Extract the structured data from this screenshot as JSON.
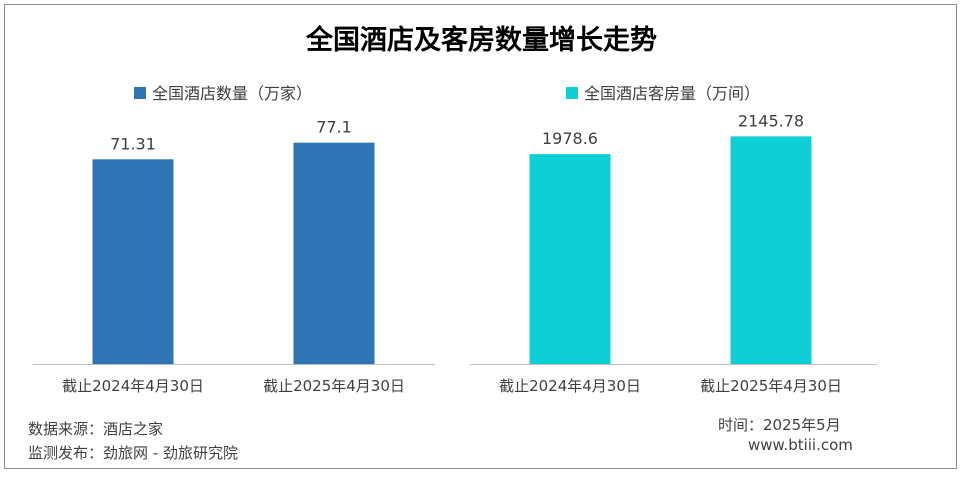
{
  "title": "全国酒店及客房数量增长走势",
  "colors": {
    "hotels": "#2e75b6",
    "rooms": "#0fcfd6",
    "axis": "#bfbfbf"
  },
  "chart_data": [
    {
      "type": "bar",
      "categories": [
        "截止2024年4月30日",
        "截止2025年4月30日"
      ],
      "series": [
        {
          "name": "全国酒店数量（万家）",
          "values": [
            71.31,
            77.1
          ]
        }
      ],
      "value_labels": [
        "71.31",
        "77.1"
      ],
      "grid": false,
      "legend": "top-left",
      "ylim": [
        0,
        85
      ]
    },
    {
      "type": "bar",
      "categories": [
        "截止2024年4月30日",
        "截止2025年4月30日"
      ],
      "series": [
        {
          "name": "全国酒店客房量（万间）",
          "values": [
            1978.6,
            2145.78
          ]
        }
      ],
      "value_labels": [
        "1978.6",
        "2145.78"
      ],
      "grid": false,
      "legend": "top-center",
      "ylim": [
        0,
        2300
      ]
    }
  ],
  "footer": {
    "source": "数据来源：酒店之家",
    "publisher": "监测发布：劲旅网 - 劲旅研究院",
    "time": "时间：2025年5月",
    "site": "www.btiii.com"
  }
}
